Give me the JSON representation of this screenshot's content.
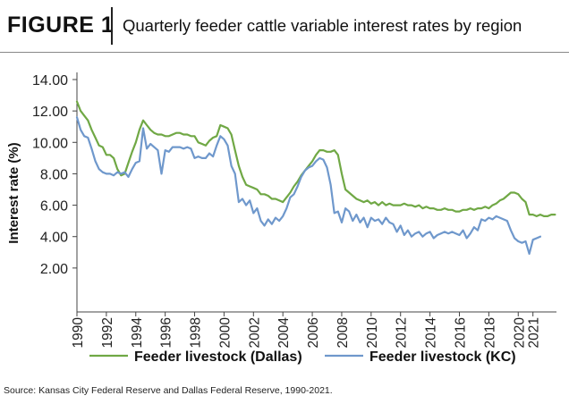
{
  "figure": {
    "label": "FIGURE 1",
    "title": "Quarterly feeder cattle variable interest rates by region"
  },
  "source": "Source: Kansas City Federal Reserve and Dallas Federal Reserve, 1990-2021.",
  "colors": {
    "dallas": "#70a845",
    "kc": "#6f98cc",
    "axis": "#444444"
  },
  "chart_data": {
    "type": "line",
    "title": "",
    "xlabel": "",
    "ylabel": "Interest rate (%)",
    "ylim": [
      0,
      14
    ],
    "xlim": [
      1990,
      2021.25
    ],
    "yticks": [
      "2.00",
      "4.00",
      "6.00",
      "8.00",
      "10.00",
      "12.00",
      "14.00"
    ],
    "xticks": [
      "1990",
      "1992",
      "1994",
      "1996",
      "1998",
      "2000",
      "2002",
      "2004",
      "2006",
      "2008",
      "2010",
      "2012",
      "2014",
      "2016",
      "2018",
      "2020",
      "2021"
    ],
    "grid": false,
    "legend_position": "bottom",
    "series": [
      {
        "name": "Feeder livestock (Dallas)",
        "color": "#70a845",
        "points": [
          [
            1990.0,
            12.6
          ],
          [
            1990.25,
            12.0
          ],
          [
            1990.5,
            11.7
          ],
          [
            1990.75,
            11.4
          ],
          [
            1991.0,
            10.8
          ],
          [
            1991.25,
            10.3
          ],
          [
            1991.5,
            9.8
          ],
          [
            1991.75,
            9.7
          ],
          [
            1992.0,
            9.2
          ],
          [
            1992.25,
            9.2
          ],
          [
            1992.5,
            9.0
          ],
          [
            1992.75,
            8.3
          ],
          [
            1993.0,
            7.9
          ],
          [
            1993.25,
            8.0
          ],
          [
            1993.5,
            8.7
          ],
          [
            1993.75,
            9.4
          ],
          [
            1994.0,
            10.0
          ],
          [
            1994.25,
            10.8
          ],
          [
            1994.5,
            11.4
          ],
          [
            1994.75,
            11.1
          ],
          [
            1995.0,
            10.8
          ],
          [
            1995.25,
            10.6
          ],
          [
            1995.5,
            10.5
          ],
          [
            1995.75,
            10.5
          ],
          [
            1996.0,
            10.4
          ],
          [
            1996.25,
            10.4
          ],
          [
            1996.5,
            10.5
          ],
          [
            1996.75,
            10.6
          ],
          [
            1997.0,
            10.6
          ],
          [
            1997.25,
            10.5
          ],
          [
            1997.5,
            10.5
          ],
          [
            1997.75,
            10.4
          ],
          [
            1998.0,
            10.4
          ],
          [
            1998.25,
            10.0
          ],
          [
            1998.5,
            9.9
          ],
          [
            1998.75,
            9.8
          ],
          [
            1999.0,
            10.1
          ],
          [
            1999.25,
            10.3
          ],
          [
            1999.5,
            10.4
          ],
          [
            1999.75,
            11.1
          ],
          [
            2000.0,
            11.0
          ],
          [
            2000.25,
            10.9
          ],
          [
            2000.5,
            10.5
          ],
          [
            2000.75,
            9.5
          ],
          [
            2001.0,
            8.5
          ],
          [
            2001.25,
            7.8
          ],
          [
            2001.5,
            7.3
          ],
          [
            2001.75,
            7.2
          ],
          [
            2002.0,
            7.1
          ],
          [
            2002.25,
            7.0
          ],
          [
            2002.5,
            6.7
          ],
          [
            2002.75,
            6.7
          ],
          [
            2003.0,
            6.6
          ],
          [
            2003.25,
            6.4
          ],
          [
            2003.5,
            6.4
          ],
          [
            2003.75,
            6.3
          ],
          [
            2004.0,
            6.2
          ],
          [
            2004.25,
            6.5
          ],
          [
            2004.5,
            6.8
          ],
          [
            2004.75,
            7.2
          ],
          [
            2005.0,
            7.5
          ],
          [
            2005.25,
            7.9
          ],
          [
            2005.5,
            8.2
          ],
          [
            2005.75,
            8.5
          ],
          [
            2006.0,
            8.8
          ],
          [
            2006.25,
            9.2
          ],
          [
            2006.5,
            9.5
          ],
          [
            2006.75,
            9.5
          ],
          [
            2007.0,
            9.4
          ],
          [
            2007.25,
            9.4
          ],
          [
            2007.5,
            9.5
          ],
          [
            2007.75,
            9.2
          ],
          [
            2008.0,
            8.0
          ],
          [
            2008.25,
            7.0
          ],
          [
            2008.5,
            6.8
          ],
          [
            2008.75,
            6.6
          ],
          [
            2009.0,
            6.4
          ],
          [
            2009.25,
            6.3
          ],
          [
            2009.5,
            6.2
          ],
          [
            2009.75,
            6.3
          ],
          [
            2010.0,
            6.1
          ],
          [
            2010.25,
            6.2
          ],
          [
            2010.5,
            6.0
          ],
          [
            2010.75,
            6.2
          ],
          [
            2011.0,
            6.0
          ],
          [
            2011.25,
            6.1
          ],
          [
            2011.5,
            6.0
          ],
          [
            2011.75,
            6.0
          ],
          [
            2012.0,
            6.0
          ],
          [
            2012.25,
            6.1
          ],
          [
            2012.5,
            6.0
          ],
          [
            2012.75,
            6.0
          ],
          [
            2013.0,
            5.9
          ],
          [
            2013.25,
            6.0
          ],
          [
            2013.5,
            5.8
          ],
          [
            2013.75,
            5.9
          ],
          [
            2014.0,
            5.8
          ],
          [
            2014.25,
            5.8
          ],
          [
            2014.5,
            5.7
          ],
          [
            2014.75,
            5.7
          ],
          [
            2015.0,
            5.8
          ],
          [
            2015.25,
            5.7
          ],
          [
            2015.5,
            5.7
          ],
          [
            2015.75,
            5.6
          ],
          [
            2016.0,
            5.6
          ],
          [
            2016.25,
            5.7
          ],
          [
            2016.5,
            5.7
          ],
          [
            2016.75,
            5.8
          ],
          [
            2017.0,
            5.7
          ],
          [
            2017.25,
            5.8
          ],
          [
            2017.5,
            5.8
          ],
          [
            2017.75,
            5.9
          ],
          [
            2018.0,
            5.8
          ],
          [
            2018.25,
            6.0
          ],
          [
            2018.5,
            6.1
          ],
          [
            2018.75,
            6.3
          ],
          [
            2019.0,
            6.4
          ],
          [
            2019.25,
            6.6
          ],
          [
            2019.5,
            6.8
          ],
          [
            2019.75,
            6.8
          ],
          [
            2020.0,
            6.7
          ],
          [
            2020.25,
            6.4
          ],
          [
            2020.5,
            6.2
          ],
          [
            2020.75,
            5.4
          ],
          [
            2021.0,
            5.4
          ],
          [
            2021.25,
            5.3
          ],
          [
            2021.5,
            5.4
          ],
          [
            2021.75,
            5.3
          ],
          [
            2022.0,
            5.3
          ],
          [
            2022.25,
            5.4
          ],
          [
            2022.5,
            5.4
          ]
        ]
      },
      {
        "name": "Feeder livestock (KC)",
        "color": "#6f98cc",
        "points": [
          [
            1990.0,
            11.6
          ],
          [
            1990.25,
            10.8
          ],
          [
            1990.5,
            10.4
          ],
          [
            1990.75,
            10.3
          ],
          [
            1991.0,
            9.6
          ],
          [
            1991.25,
            8.8
          ],
          [
            1991.5,
            8.3
          ],
          [
            1991.75,
            8.1
          ],
          [
            1992.0,
            8.0
          ],
          [
            1992.25,
            8.0
          ],
          [
            1992.5,
            7.9
          ],
          [
            1992.75,
            8.1
          ],
          [
            1993.0,
            8.0
          ],
          [
            1993.25,
            8.1
          ],
          [
            1993.5,
            7.8
          ],
          [
            1993.75,
            8.3
          ],
          [
            1994.0,
            8.7
          ],
          [
            1994.25,
            8.8
          ],
          [
            1994.5,
            10.9
          ],
          [
            1994.75,
            9.6
          ],
          [
            1995.0,
            9.9
          ],
          [
            1995.25,
            9.7
          ],
          [
            1995.5,
            9.5
          ],
          [
            1995.75,
            8.0
          ],
          [
            1996.0,
            9.5
          ],
          [
            1996.25,
            9.4
          ],
          [
            1996.5,
            9.7
          ],
          [
            1996.75,
            9.7
          ],
          [
            1997.0,
            9.7
          ],
          [
            1997.25,
            9.6
          ],
          [
            1997.5,
            9.7
          ],
          [
            1997.75,
            9.6
          ],
          [
            1998.0,
            9.0
          ],
          [
            1998.25,
            9.1
          ],
          [
            1998.5,
            9.0
          ],
          [
            1998.75,
            9.0
          ],
          [
            1999.0,
            9.3
          ],
          [
            1999.25,
            9.1
          ],
          [
            1999.5,
            9.8
          ],
          [
            1999.75,
            10.4
          ],
          [
            2000.0,
            10.2
          ],
          [
            2000.25,
            9.8
          ],
          [
            2000.5,
            8.5
          ],
          [
            2000.75,
            8.0
          ],
          [
            2001.0,
            6.2
          ],
          [
            2001.25,
            6.4
          ],
          [
            2001.5,
            6.0
          ],
          [
            2001.75,
            6.3
          ],
          [
            2002.0,
            5.5
          ],
          [
            2002.25,
            5.8
          ],
          [
            2002.5,
            5.0
          ],
          [
            2002.75,
            4.7
          ],
          [
            2003.0,
            5.1
          ],
          [
            2003.25,
            4.8
          ],
          [
            2003.5,
            5.2
          ],
          [
            2003.75,
            5.0
          ],
          [
            2004.0,
            5.3
          ],
          [
            2004.25,
            5.8
          ],
          [
            2004.5,
            6.5
          ],
          [
            2004.75,
            6.7
          ],
          [
            2005.0,
            7.2
          ],
          [
            2005.25,
            7.8
          ],
          [
            2005.5,
            8.2
          ],
          [
            2005.75,
            8.4
          ],
          [
            2006.0,
            8.5
          ],
          [
            2006.25,
            8.8
          ],
          [
            2006.5,
            9.0
          ],
          [
            2006.75,
            8.9
          ],
          [
            2007.0,
            8.4
          ],
          [
            2007.25,
            7.3
          ],
          [
            2007.5,
            5.5
          ],
          [
            2007.75,
            5.6
          ],
          [
            2008.0,
            4.9
          ],
          [
            2008.25,
            5.8
          ],
          [
            2008.5,
            5.6
          ],
          [
            2008.75,
            5.0
          ],
          [
            2009.0,
            5.4
          ],
          [
            2009.25,
            4.9
          ],
          [
            2009.5,
            5.2
          ],
          [
            2009.75,
            4.6
          ],
          [
            2010.0,
            5.2
          ],
          [
            2010.25,
            5.0
          ],
          [
            2010.5,
            5.1
          ],
          [
            2010.75,
            4.8
          ],
          [
            2011.0,
            5.2
          ],
          [
            2011.25,
            4.9
          ],
          [
            2011.5,
            4.8
          ],
          [
            2011.75,
            4.3
          ],
          [
            2012.0,
            4.7
          ],
          [
            2012.25,
            4.1
          ],
          [
            2012.5,
            4.4
          ],
          [
            2012.75,
            4.0
          ],
          [
            2013.0,
            4.2
          ],
          [
            2013.25,
            4.3
          ],
          [
            2013.5,
            4.0
          ],
          [
            2013.75,
            4.2
          ],
          [
            2014.0,
            4.3
          ],
          [
            2014.25,
            3.9
          ],
          [
            2014.5,
            4.1
          ],
          [
            2014.75,
            4.2
          ],
          [
            2015.0,
            4.3
          ],
          [
            2015.25,
            4.2
          ],
          [
            2015.5,
            4.3
          ],
          [
            2015.75,
            4.2
          ],
          [
            2016.0,
            4.1
          ],
          [
            2016.25,
            4.4
          ],
          [
            2016.5,
            3.9
          ],
          [
            2016.75,
            4.2
          ],
          [
            2017.0,
            4.6
          ],
          [
            2017.25,
            4.4
          ],
          [
            2017.5,
            5.1
          ],
          [
            2017.75,
            5.0
          ],
          [
            2018.0,
            5.2
          ],
          [
            2018.25,
            5.1
          ],
          [
            2018.5,
            5.3
          ],
          [
            2018.75,
            5.2
          ],
          [
            2019.0,
            5.1
          ],
          [
            2019.25,
            5.0
          ],
          [
            2019.5,
            4.4
          ],
          [
            2019.75,
            3.9
          ],
          [
            2020.0,
            3.7
          ],
          [
            2020.25,
            3.6
          ],
          [
            2020.5,
            3.7
          ],
          [
            2020.75,
            2.9
          ],
          [
            2021.0,
            3.8
          ],
          [
            2021.25,
            3.9
          ],
          [
            2021.5,
            4.0
          ]
        ]
      }
    ]
  }
}
